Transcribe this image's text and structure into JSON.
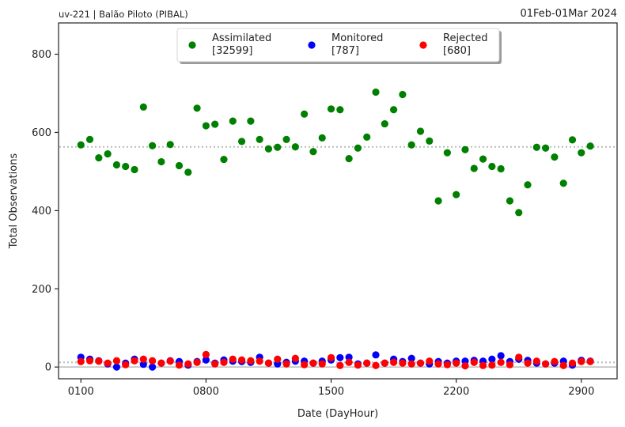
{
  "header": {
    "left": "uv-221  |  Balão Piloto (PIBAL)",
    "right": "01Feb-01Mar 2024"
  },
  "chart_data": {
    "type": "scatter",
    "xlabel": "Date (DayHour)",
    "ylabel": "Total Observations",
    "ylim": [
      -30,
      880
    ],
    "xlim": [
      -5,
      120
    ],
    "yticks": [
      0,
      200,
      400,
      600,
      800
    ],
    "xticks": [
      {
        "pos": 0,
        "label": "0100"
      },
      {
        "pos": 28,
        "label": "0800"
      },
      {
        "pos": 56,
        "label": "1500"
      },
      {
        "pos": 84,
        "label": "2200"
      },
      {
        "pos": 112,
        "label": "2900"
      }
    ],
    "grid": false,
    "legend_position": "top-center",
    "reference_lines": [
      {
        "value": 563,
        "color": "#bbbbbb",
        "style": "dotted"
      },
      {
        "value": 12,
        "color": "#bbbbbb",
        "style": "dotted"
      },
      {
        "value": 0,
        "color": "#bbbbbb",
        "style": "solid"
      }
    ],
    "series": [
      {
        "name": "Assimilated",
        "count": "[32599]",
        "color": "#008000",
        "x": [
          0,
          2,
          4,
          6,
          8,
          10,
          12,
          14,
          16,
          18,
          20,
          22,
          24,
          26,
          28,
          30,
          32,
          34,
          36,
          38,
          40,
          42,
          44,
          46,
          48,
          50,
          52,
          54,
          56,
          58,
          60,
          62,
          64,
          66,
          68,
          70,
          72,
          74,
          76,
          78,
          80,
          82,
          84,
          86,
          88,
          90,
          92,
          94,
          96,
          98,
          100,
          102,
          104,
          106,
          108,
          110,
          112,
          114
        ],
        "y": [
          568,
          582,
          535,
          545,
          517,
          513,
          505,
          665,
          566,
          525,
          569,
          515,
          498,
          662,
          617,
          621,
          531,
          629,
          577,
          629,
          582,
          558,
          562,
          582,
          563,
          647,
          551,
          586,
          660,
          658,
          533,
          560,
          588,
          703,
          622,
          658,
          697,
          568,
          603,
          578,
          425,
          548,
          441,
          556,
          508,
          532,
          513,
          507,
          425,
          395,
          466,
          562,
          560,
          537,
          470,
          581,
          548,
          565
        ]
      },
      {
        "name": "Monitored",
        "count": "[787]",
        "color": "#0000ff",
        "x": [
          0,
          2,
          4,
          6,
          8,
          10,
          12,
          14,
          16,
          18,
          20,
          22,
          24,
          26,
          28,
          30,
          32,
          34,
          36,
          38,
          40,
          42,
          44,
          46,
          48,
          50,
          52,
          54,
          56,
          58,
          60,
          62,
          64,
          66,
          68,
          70,
          72,
          74,
          76,
          78,
          80,
          82,
          84,
          86,
          88,
          90,
          92,
          94,
          96,
          98,
          100,
          102,
          104,
          106,
          108,
          110,
          112,
          114
        ],
        "y": [
          25,
          20,
          16,
          8,
          0,
          10,
          20,
          7,
          0,
          10,
          16,
          14,
          5,
          14,
          18,
          10,
          18,
          15,
          14,
          12,
          25,
          10,
          8,
          12,
          15,
          15,
          10,
          15,
          18,
          24,
          25,
          8,
          10,
          31,
          10,
          20,
          14,
          22,
          10,
          8,
          14,
          10,
          15,
          15,
          17,
          15,
          20,
          29,
          14,
          20,
          17,
          10,
          8,
          10,
          15,
          5,
          17,
          15
        ]
      },
      {
        "name": "Rejected",
        "count": "[680]",
        "color": "#ff0000",
        "x": [
          0,
          2,
          4,
          6,
          8,
          10,
          12,
          14,
          16,
          18,
          20,
          22,
          24,
          26,
          28,
          30,
          32,
          34,
          36,
          38,
          40,
          42,
          44,
          46,
          48,
          50,
          52,
          54,
          56,
          58,
          60,
          62,
          64,
          66,
          68,
          70,
          72,
          74,
          76,
          78,
          80,
          82,
          84,
          86,
          88,
          90,
          92,
          94,
          96,
          98,
          100,
          102,
          104,
          106,
          108,
          110,
          112,
          114
        ],
        "y": [
          14,
          16,
          15,
          10,
          16,
          6,
          16,
          20,
          16,
          10,
          15,
          5,
          8,
          12,
          32,
          8,
          12,
          20,
          18,
          16,
          15,
          10,
          20,
          8,
          22,
          6,
          10,
          8,
          24,
          4,
          12,
          5,
          10,
          4,
          10,
          12,
          10,
          8,
          10,
          15,
          8,
          6,
          10,
          3,
          12,
          4,
          5,
          12,
          6,
          25,
          10,
          15,
          8,
          14,
          4,
          10,
          14,
          14
        ]
      }
    ]
  }
}
